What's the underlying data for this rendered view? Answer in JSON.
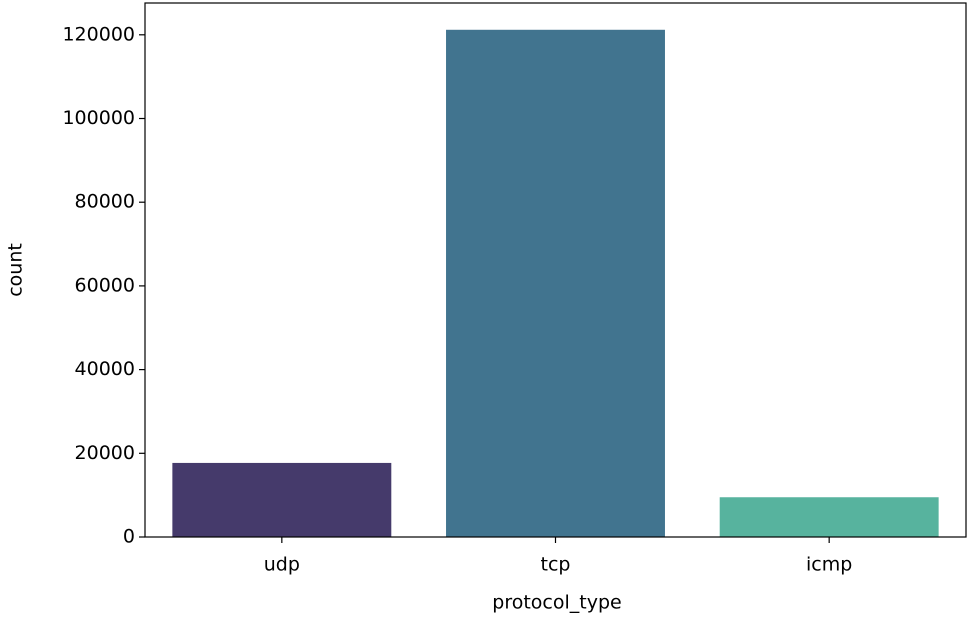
{
  "chart_data": {
    "type": "bar",
    "x_label": "protocol_type",
    "y_label": "count",
    "categories": [
      "udp",
      "tcp",
      "icmp"
    ],
    "values": [
      17700,
      121200,
      9500
    ],
    "colors": [
      "#453a6b",
      "#41748f",
      "#57b39e"
    ],
    "ylim": [
      0,
      127600
    ],
    "yticks": [
      0,
      20000,
      40000,
      60000,
      80000,
      100000,
      120000
    ]
  }
}
